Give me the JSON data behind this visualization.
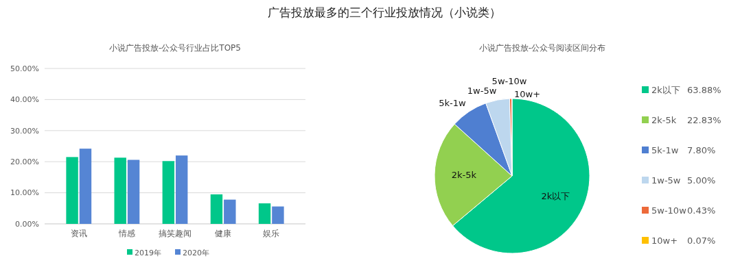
{
  "chart_data": [
    {
      "type": "bar",
      "title": "广告投放最多的三个行业投放情况（小说类）",
      "subtitle": "小说广告投放-公众号行业占比TOP5",
      "categories": [
        "资讯",
        "情感",
        "搞笑趣闻",
        "健康",
        "娱乐"
      ],
      "series": [
        {
          "name": "2019年",
          "color": "#00c78a",
          "values": [
            21.5,
            21.3,
            20.2,
            9.5,
            6.6
          ]
        },
        {
          "name": "2020年",
          "color": "#5585d4",
          "values": [
            24.2,
            20.6,
            22.0,
            7.8,
            5.6
          ]
        }
      ],
      "ylim": [
        0,
        50
      ],
      "yticks": [
        {
          "value": 0,
          "label": "0.00%"
        },
        {
          "value": 10,
          "label": "10.00%"
        },
        {
          "value": 20,
          "label": "20.00%"
        },
        {
          "value": 30,
          "label": "30.00%"
        },
        {
          "value": 40,
          "label": "40.00%"
        },
        {
          "value": 50,
          "label": "50.00%"
        }
      ],
      "grid": "y",
      "legend": "bottom"
    },
    {
      "type": "pie",
      "title": "小说广告投放-公众号阅读区间分布",
      "categories": [
        "2k以下",
        "2k-5k",
        "5k-1w",
        "1w-5w",
        "5w-10w",
        "10w+"
      ],
      "values": [
        63.88,
        22.83,
        7.8,
        5.0,
        0.43,
        0.07
      ],
      "colors": [
        "#00c78a",
        "#92d050",
        "#4f7fd1",
        "#bdd7ee",
        "#ed6a3a",
        "#ffc000"
      ],
      "value_labels": [
        "63.88%",
        "22.83%",
        "7.80%",
        "5.00%",
        "0.43%",
        "0.07%"
      ],
      "legend": "right"
    }
  ]
}
